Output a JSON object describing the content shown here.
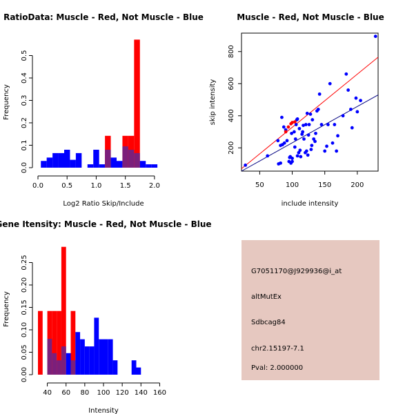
{
  "colors": {
    "muscle": "#ff0000",
    "not_muscle": "#0000ff",
    "overlap": "#7b1f7b",
    "panel_bg": "#e6c8c0",
    "pval": "#b00000"
  },
  "chart_data": [
    {
      "id": "ratio_hist",
      "type": "bar",
      "title": "RatioData: Muscle - Red, Not Muscle - Blue",
      "xlabel": "Log2 Ratio Skip/Include",
      "ylabel": "Frequency",
      "xlim": [
        0.0,
        2.25
      ],
      "ylim": [
        0,
        0.6
      ],
      "xticks": [
        "0.0",
        "0.5",
        "1.0",
        "1.5",
        "2.0"
      ],
      "xtick_values": [
        0.0,
        0.5,
        1.0,
        1.5,
        2.0
      ],
      "yticks": [
        "0.0",
        "0.1",
        "0.2",
        "0.3",
        "0.4",
        "0.5"
      ],
      "ytick_values": [
        0.0,
        0.1,
        0.2,
        0.3,
        0.4,
        0.5
      ],
      "bin_start": 0.05,
      "bin_width": 0.1,
      "series": [
        {
          "name": "Not Muscle",
          "color": "blue",
          "values": [
            0.03,
            0.045,
            0.065,
            0.065,
            0.08,
            0.035,
            0.065,
            0,
            0.015,
            0.08,
            0.015,
            0.08,
            0.045,
            0.03,
            0.095,
            0.08,
            0.065,
            0.03,
            0.015,
            0.015
          ]
        },
        {
          "name": "Muscle",
          "color": "red",
          "values": [
            0,
            0,
            0,
            0,
            0,
            0,
            0,
            0,
            0,
            0,
            0,
            0.142,
            0,
            0,
            0.142,
            0.142,
            0.571,
            0,
            0,
            0
          ]
        }
      ]
    },
    {
      "id": "scatter",
      "type": "scatter",
      "title": "Muscle - Red, Not Muscle - Blue",
      "xlabel": "include intensity",
      "ylabel": "skip intensity",
      "xlim": [
        22,
        232
      ],
      "ylim": [
        55,
        915
      ],
      "xticks": [
        "50",
        "100",
        "150",
        "200"
      ],
      "xtick_values": [
        50,
        100,
        150,
        200
      ],
      "yticks": [
        "200",
        "400",
        "600",
        "800"
      ],
      "ytick_values": [
        200,
        400,
        600,
        800
      ],
      "blue_points": [
        [
          28,
          92
        ],
        [
          62,
          150
        ],
        [
          78,
          245
        ],
        [
          79,
          100
        ],
        [
          82,
          105
        ],
        [
          82,
          215
        ],
        [
          84,
          390
        ],
        [
          85,
          220
        ],
        [
          87,
          330
        ],
        [
          88,
          230
        ],
        [
          90,
          312
        ],
        [
          92,
          245
        ],
        [
          95,
          115
        ],
        [
          96,
          140
        ],
        [
          97,
          145
        ],
        [
          98,
          105
        ],
        [
          99,
          290
        ],
        [
          100,
          135
        ],
        [
          100,
          115
        ],
        [
          103,
          300
        ],
        [
          104,
          205
        ],
        [
          105,
          255
        ],
        [
          106,
          345
        ],
        [
          107,
          375
        ],
        [
          108,
          380
        ],
        [
          108,
          150
        ],
        [
          110,
          170
        ],
        [
          111,
          320
        ],
        [
          112,
          185
        ],
        [
          113,
          145
        ],
        [
          115,
          285
        ],
        [
          116,
          300
        ],
        [
          117,
          340
        ],
        [
          118,
          255
        ],
        [
          120,
          170
        ],
        [
          121,
          345
        ],
        [
          122,
          180
        ],
        [
          123,
          415
        ],
        [
          124,
          155
        ],
        [
          125,
          280
        ],
        [
          126,
          345
        ],
        [
          128,
          410
        ],
        [
          129,
          190
        ],
        [
          130,
          215
        ],
        [
          131,
          375
        ],
        [
          133,
          255
        ],
        [
          135,
          240
        ],
        [
          136,
          290
        ],
        [
          138,
          430
        ],
        [
          140,
          440
        ],
        [
          142,
          535
        ],
        [
          145,
          345
        ],
        [
          150,
          180
        ],
        [
          153,
          210
        ],
        [
          155,
          345
        ],
        [
          158,
          600
        ],
        [
          162,
          230
        ],
        [
          165,
          345
        ],
        [
          168,
          180
        ],
        [
          170,
          275
        ],
        [
          178,
          400
        ],
        [
          183,
          660
        ],
        [
          186,
          560
        ],
        [
          190,
          440
        ],
        [
          192,
          325
        ],
        [
          198,
          510
        ],
        [
          200,
          425
        ],
        [
          205,
          495
        ],
        [
          228,
          895
        ]
      ],
      "red_points": [
        [
          90,
          300
        ],
        [
          94,
          330
        ],
        [
          98,
          350
        ],
        [
          100,
          358
        ],
        [
          104,
          362
        ]
      ],
      "red_line": [
        [
          22,
          70
        ],
        [
          232,
          765
        ]
      ],
      "blue_line": [
        [
          22,
          55
        ],
        [
          232,
          530
        ]
      ]
    },
    {
      "id": "intensity_hist",
      "type": "bar",
      "title": "Gene Itensity: Muscle - Red, Not Muscle - Blue",
      "xlabel": "Intensity",
      "ylabel": "Frequency",
      "xlim": [
        30,
        170
      ],
      "ylim": [
        0,
        0.3
      ],
      "xticks": [
        "40",
        "60",
        "80",
        "100",
        "120",
        "140",
        "160"
      ],
      "xtick_values": [
        40,
        60,
        80,
        100,
        120,
        140,
        160
      ],
      "yticks": [
        "0.00",
        "0.05",
        "0.10",
        "0.15",
        "0.20",
        "0.25"
      ],
      "ytick_values": [
        0.0,
        0.05,
        0.1,
        0.15,
        0.2,
        0.25
      ],
      "bin_start": 30,
      "bin_width": 5,
      "series": [
        {
          "name": "Not Muscle",
          "color": "blue",
          "values": [
            0,
            0,
            0.08,
            0.048,
            0.032,
            0.063,
            0.048,
            0.032,
            0.095,
            0.079,
            0.063,
            0.063,
            0.127,
            0.079,
            0.079,
            0.079,
            0.032,
            0,
            0,
            0,
            0.032,
            0.016
          ]
        },
        {
          "name": "Muscle",
          "color": "red",
          "values": [
            0.142,
            0,
            0.142,
            0.142,
            0.142,
            0.285,
            0,
            0.142,
            0,
            0,
            0,
            0,
            0,
            0,
            0,
            0,
            0,
            0,
            0,
            0,
            0,
            0
          ]
        }
      ]
    }
  ],
  "info_panel": {
    "probe": "G7051170@J929936@i_at",
    "event": "altMutEx",
    "gene": "Sdbcag84",
    "location": "chr2.15197-7.1",
    "pval": "Pval: 2.000000"
  }
}
